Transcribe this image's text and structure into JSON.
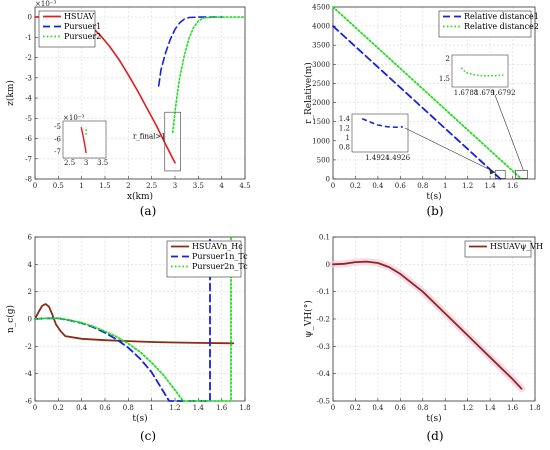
{
  "panel_captions": [
    "(a)",
    "(b)",
    "(c)",
    "(d)"
  ],
  "chart_data": [
    {
      "panel": "a",
      "type": "line",
      "xlabel": "x(km)",
      "ylabel": "z(km)",
      "exponent_label": "×10⁻³",
      "xlim": [
        0,
        4.5
      ],
      "ylim": [
        -8,
        0.5
      ],
      "xticks": [
        0,
        0.5,
        1,
        1.5,
        2,
        2.5,
        3,
        3.5,
        4,
        4.5
      ],
      "yticks": [
        -8,
        -7,
        -6,
        -5,
        -4,
        -3,
        -2,
        -1,
        0
      ],
      "grid": true,
      "legend_position": "top-left",
      "series": [
        {
          "name": "HSUAV",
          "color": "#e41c1c",
          "dash": "solid",
          "x": [
            0,
            0.2,
            0.4,
            0.6,
            0.8,
            1.0,
            1.2,
            1.4,
            1.6,
            1.8,
            2.0,
            2.2,
            2.4,
            2.6,
            2.8,
            3.0
          ],
          "y": [
            0,
            0.02,
            0.05,
            0.05,
            0.0,
            -0.15,
            -0.45,
            -0.9,
            -1.45,
            -2.1,
            -2.85,
            -3.65,
            -4.5,
            -5.35,
            -6.3,
            -7.2
          ]
        },
        {
          "name": "Pursuer1",
          "color": "#1420e6",
          "dash": "dashed",
          "x": [
            2.65,
            2.7,
            2.8,
            2.9,
            3.0,
            3.1,
            3.2,
            3.3,
            3.5,
            3.7,
            4.0
          ],
          "y": [
            -3.4,
            -2.6,
            -1.75,
            -1.1,
            -0.6,
            -0.28,
            -0.1,
            -0.02,
            0,
            0,
            0
          ]
        },
        {
          "name": "Pursuer2",
          "color": "#22dd22",
          "dash": "dotted",
          "x": [
            2.95,
            3.0,
            3.05,
            3.1,
            3.2,
            3.3,
            3.4,
            3.5,
            3.6,
            3.8,
            4.0,
            4.3,
            4.5
          ],
          "y": [
            -5.7,
            -4.7,
            -3.8,
            -3.0,
            -1.9,
            -1.05,
            -0.5,
            -0.2,
            -0.05,
            0,
            0,
            0,
            0
          ]
        }
      ],
      "annotation": "r_final>1",
      "inset": {
        "xticks": [
          2.5,
          3,
          3.5
        ],
        "yticks": [
          -7,
          -6,
          -5
        ],
        "exponent_label": "×10⁻³",
        "hsuav_x": [
          2.85,
          2.9,
          2.95,
          3.0
        ],
        "hsuav_y": [
          -5.0,
          -5.6,
          -6.3,
          -7.1
        ],
        "pursuer2_x": [
          3.0,
          3.0
        ],
        "pursuer2_y": [
          -5.6,
          -5.0
        ]
      }
    },
    {
      "panel": "b",
      "type": "line",
      "xlabel": "t(s)",
      "ylabel": "r_Relative(m)",
      "xlim": [
        0,
        1.8
      ],
      "ylim": [
        0,
        4500
      ],
      "xticks": [
        0,
        0.2,
        0.4,
        0.6,
        0.8,
        1,
        1.2,
        1.4,
        1.6
      ],
      "yticks": [
        0,
        500,
        1000,
        1500,
        2000,
        2500,
        3000,
        3500,
        4000,
        4500
      ],
      "grid": true,
      "legend_position": "top-right",
      "series": [
        {
          "name": "Relative distance1",
          "color": "#1420e6",
          "dash": "dashed",
          "x": [
            0,
            1.4926
          ],
          "y": [
            4000,
            1.25
          ]
        },
        {
          "name": "Relative distance2",
          "color": "#22dd22",
          "dash": "dotted",
          "x": [
            0,
            1.6792
          ],
          "y": [
            4500,
            1.5
          ]
        }
      ],
      "inset1": {
        "xticks": [
          "1.4924",
          "1.4926"
        ],
        "yticks": [
          "0.8",
          "1",
          "1.2",
          "1.4"
        ],
        "x": [
          1.49225,
          1.4924,
          1.4925,
          1.4926,
          1.49265
        ],
        "y": [
          1.4,
          1.27,
          1.23,
          1.22,
          1.23
        ]
      },
      "inset2": {
        "xticks": [
          "1.6788",
          "1.679",
          "1.6792"
        ],
        "yticks": [
          "1.5",
          "2"
        ],
        "x": [
          1.67875,
          1.6788,
          1.6789,
          1.679,
          1.6791,
          1.6792
        ],
        "y": [
          1.78,
          1.66,
          1.6,
          1.58,
          1.58,
          1.6
        ]
      }
    },
    {
      "panel": "c",
      "type": "line",
      "xlabel": "t(s)",
      "ylabel": "n_c(g)",
      "xlim": [
        0,
        1.8
      ],
      "ylim": [
        -6,
        6
      ],
      "xticks": [
        0,
        0.2,
        0.4,
        0.6,
        0.8,
        1,
        1.2,
        1.4,
        1.6,
        1.8
      ],
      "yticks": [
        -6,
        -4,
        -2,
        0,
        2,
        4,
        6
      ],
      "grid": true,
      "legend_position": "top-right",
      "series": [
        {
          "name": "HSUAVn_Hc",
          "color": "#8b2b14",
          "dash": "solid",
          "x": [
            0,
            0.03,
            0.06,
            0.09,
            0.12,
            0.15,
            0.18,
            0.22,
            0.26,
            0.4,
            0.6,
            0.8,
            1.0,
            1.2,
            1.4,
            1.7
          ],
          "y": [
            0,
            0.5,
            0.95,
            1.1,
            0.9,
            0.3,
            -0.4,
            -0.9,
            -1.25,
            -1.45,
            -1.55,
            -1.62,
            -1.68,
            -1.72,
            -1.75,
            -1.78
          ]
        },
        {
          "name": "Pursuer1n_Tc",
          "color": "#1420e6",
          "dash": "dashed",
          "x": [
            0,
            0.1,
            0.2,
            0.3,
            0.4,
            0.5,
            0.6,
            0.7,
            0.8,
            0.9,
            1.0,
            1.1,
            1.15,
            1.49,
            1.5,
            1.5
          ],
          "y": [
            0,
            0.05,
            0.05,
            -0.1,
            -0.3,
            -0.6,
            -1.0,
            -1.5,
            -2.1,
            -2.9,
            -3.9,
            -5.3,
            -6,
            -6,
            -6,
            6
          ]
        },
        {
          "name": "Pursuer2n_Tc",
          "color": "#22dd22",
          "dash": "dotted",
          "x": [
            0,
            0.1,
            0.2,
            0.3,
            0.4,
            0.5,
            0.6,
            0.7,
            0.8,
            0.9,
            1.0,
            1.1,
            1.2,
            1.27,
            1.675,
            1.68,
            1.68
          ],
          "y": [
            0,
            0.05,
            0.05,
            -0.08,
            -0.28,
            -0.55,
            -0.9,
            -1.3,
            -1.8,
            -2.4,
            -3.2,
            -4.1,
            -5.2,
            -6,
            -6,
            -6,
            6
          ]
        }
      ]
    },
    {
      "panel": "d",
      "type": "line",
      "xlabel": "t(s)",
      "ylabel": "ψ_VH(°)",
      "xlim": [
        0,
        1.8
      ],
      "ylim": [
        -0.5,
        0.1
      ],
      "xticks": [
        0,
        0.2,
        0.4,
        0.6,
        0.8,
        1,
        1.2,
        1.4,
        1.6,
        1.8
      ],
      "yticks": [
        -0.5,
        -0.4,
        -0.3,
        -0.2,
        -0.1,
        0,
        0.1
      ],
      "grid": true,
      "legend_position": "top-right",
      "series": [
        {
          "name": "HSUAVψ_VH",
          "color": "#8b2b14",
          "dash": "solid",
          "x": [
            0,
            0.1,
            0.2,
            0.3,
            0.4,
            0.5,
            0.6,
            0.8,
            1.0,
            1.2,
            1.4,
            1.6,
            1.68
          ],
          "y": [
            0,
            0.002,
            0.008,
            0.01,
            0.005,
            -0.01,
            -0.035,
            -0.1,
            -0.18,
            -0.26,
            -0.34,
            -0.42,
            -0.455
          ]
        }
      ]
    }
  ]
}
